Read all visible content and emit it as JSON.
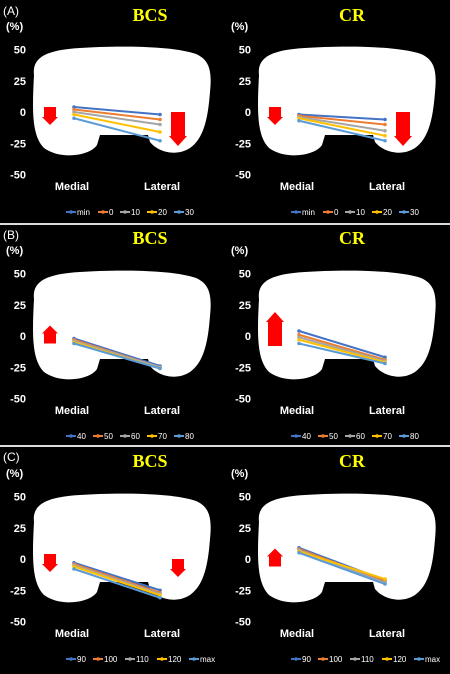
{
  "panels": [
    {
      "label": "(A)",
      "titles": [
        "BCS",
        "CR"
      ]
    },
    {
      "label": "(B)",
      "titles": [
        "BCS",
        "CR"
      ]
    },
    {
      "label": "(C)",
      "titles": [
        "BCS",
        "CR"
      ]
    }
  ],
  "y_unit": "(%)",
  "colors": {
    "title": "#ffff00",
    "arrow": "#ff0000",
    "femur_shape": "#ffffff",
    "background": "#000000"
  },
  "chart_data": [
    {
      "type": "line",
      "title": "BCS",
      "panel": "(A)",
      "categories": [
        "Medial",
        "Lateral"
      ],
      "ylabel": "(%)",
      "ylim": [
        -50,
        50
      ],
      "yticks": [
        50,
        25,
        0,
        -25,
        -50
      ],
      "series": [
        {
          "name": "min",
          "color": "#4472c4",
          "values": [
            4,
            -2
          ]
        },
        {
          "name": "0",
          "color": "#ed7d31",
          "values": [
            2,
            -6
          ]
        },
        {
          "name": "10",
          "color": "#a5a5a5",
          "values": [
            0,
            -10
          ]
        },
        {
          "name": "20",
          "color": "#ffc000",
          "values": [
            -2,
            -16
          ]
        },
        {
          "name": "30",
          "color": "#5b9bd5",
          "values": [
            -5,
            -23
          ]
        }
      ],
      "annotations": [
        {
          "side": "Medial",
          "direction": "down",
          "size": "small"
        },
        {
          "side": "Lateral",
          "direction": "down",
          "size": "large"
        }
      ]
    },
    {
      "type": "line",
      "title": "CR",
      "panel": "(A)",
      "categories": [
        "Medial",
        "Lateral"
      ],
      "ylabel": "(%)",
      "ylim": [
        -50,
        50
      ],
      "yticks": [
        50,
        25,
        0,
        -25,
        -50
      ],
      "series": [
        {
          "name": "min",
          "color": "#4472c4",
          "values": [
            -2,
            -6
          ]
        },
        {
          "name": "0",
          "color": "#ed7d31",
          "values": [
            -3,
            -10
          ]
        },
        {
          "name": "10",
          "color": "#a5a5a5",
          "values": [
            -4,
            -15
          ]
        },
        {
          "name": "20",
          "color": "#ffc000",
          "values": [
            -5,
            -19
          ]
        },
        {
          "name": "30",
          "color": "#5b9bd5",
          "values": [
            -7,
            -23
          ]
        }
      ],
      "annotations": [
        {
          "side": "Medial",
          "direction": "down",
          "size": "small"
        },
        {
          "side": "Lateral",
          "direction": "down",
          "size": "large"
        }
      ]
    },
    {
      "type": "line",
      "title": "BCS",
      "panel": "(B)",
      "categories": [
        "Medial",
        "Lateral"
      ],
      "ylabel": "(%)",
      "ylim": [
        -50,
        50
      ],
      "yticks": [
        50,
        25,
        0,
        -25,
        -50
      ],
      "series": [
        {
          "name": "40",
          "color": "#4472c4",
          "values": [
            -2,
            -24
          ]
        },
        {
          "name": "50",
          "color": "#ed7d31",
          "values": [
            -3,
            -25
          ]
        },
        {
          "name": "60",
          "color": "#a5a5a5",
          "values": [
            -4,
            -25
          ]
        },
        {
          "name": "70",
          "color": "#ffc000",
          "values": [
            -5,
            -26
          ]
        },
        {
          "name": "80",
          "color": "#5b9bd5",
          "values": [
            -6,
            -26
          ]
        }
      ],
      "annotations": [
        {
          "side": "Medial",
          "direction": "up",
          "size": "small"
        }
      ]
    },
    {
      "type": "line",
      "title": "CR",
      "panel": "(B)",
      "categories": [
        "Medial",
        "Lateral"
      ],
      "ylabel": "(%)",
      "ylim": [
        -50,
        50
      ],
      "yticks": [
        50,
        25,
        0,
        -25,
        -50
      ],
      "series": [
        {
          "name": "40",
          "color": "#4472c4",
          "values": [
            4,
            -17
          ]
        },
        {
          "name": "50",
          "color": "#ed7d31",
          "values": [
            1,
            -19
          ]
        },
        {
          "name": "60",
          "color": "#a5a5a5",
          "values": [
            -1,
            -20
          ]
        },
        {
          "name": "70",
          "color": "#ffc000",
          "values": [
            -3,
            -21
          ]
        },
        {
          "name": "80",
          "color": "#5b9bd5",
          "values": [
            -6,
            -22
          ]
        }
      ],
      "annotations": [
        {
          "side": "Medial",
          "direction": "up",
          "size": "large"
        }
      ]
    },
    {
      "type": "line",
      "title": "BCS",
      "panel": "(C)",
      "categories": [
        "Medial",
        "Lateral"
      ],
      "ylabel": "(%)",
      "ylim": [
        -50,
        50
      ],
      "yticks": [
        50,
        25,
        0,
        -25,
        -50
      ],
      "series": [
        {
          "name": "90",
          "color": "#4472c4",
          "values": [
            -3,
            -25
          ]
        },
        {
          "name": "100",
          "color": "#ed7d31",
          "values": [
            -4,
            -27
          ]
        },
        {
          "name": "110",
          "color": "#a5a5a5",
          "values": [
            -5,
            -28
          ]
        },
        {
          "name": "120",
          "color": "#ffc000",
          "values": [
            -6,
            -29
          ]
        },
        {
          "name": "max",
          "color": "#5b9bd5",
          "values": [
            -8,
            -31
          ]
        }
      ],
      "annotations": [
        {
          "side": "Medial",
          "direction": "down",
          "size": "small"
        },
        {
          "side": "Lateral",
          "direction": "down",
          "size": "small"
        }
      ]
    },
    {
      "type": "line",
      "title": "CR",
      "panel": "(C)",
      "categories": [
        "Medial",
        "Lateral"
      ],
      "ylabel": "(%)",
      "ylim": [
        -50,
        50
      ],
      "yticks": [
        50,
        25,
        0,
        -25,
        -50
      ],
      "series": [
        {
          "name": "90",
          "color": "#4472c4",
          "values": [
            9,
            -17
          ]
        },
        {
          "name": "100",
          "color": "#ed7d31",
          "values": [
            8,
            -18
          ]
        },
        {
          "name": "110",
          "color": "#a5a5a5",
          "values": [
            7,
            -19
          ]
        },
        {
          "name": "120",
          "color": "#ffc000",
          "values": [
            6,
            -16
          ]
        },
        {
          "name": "max",
          "color": "#5b9bd5",
          "values": [
            5,
            -20
          ]
        }
      ],
      "annotations": [
        {
          "side": "Medial",
          "direction": "up",
          "size": "small"
        }
      ]
    }
  ]
}
